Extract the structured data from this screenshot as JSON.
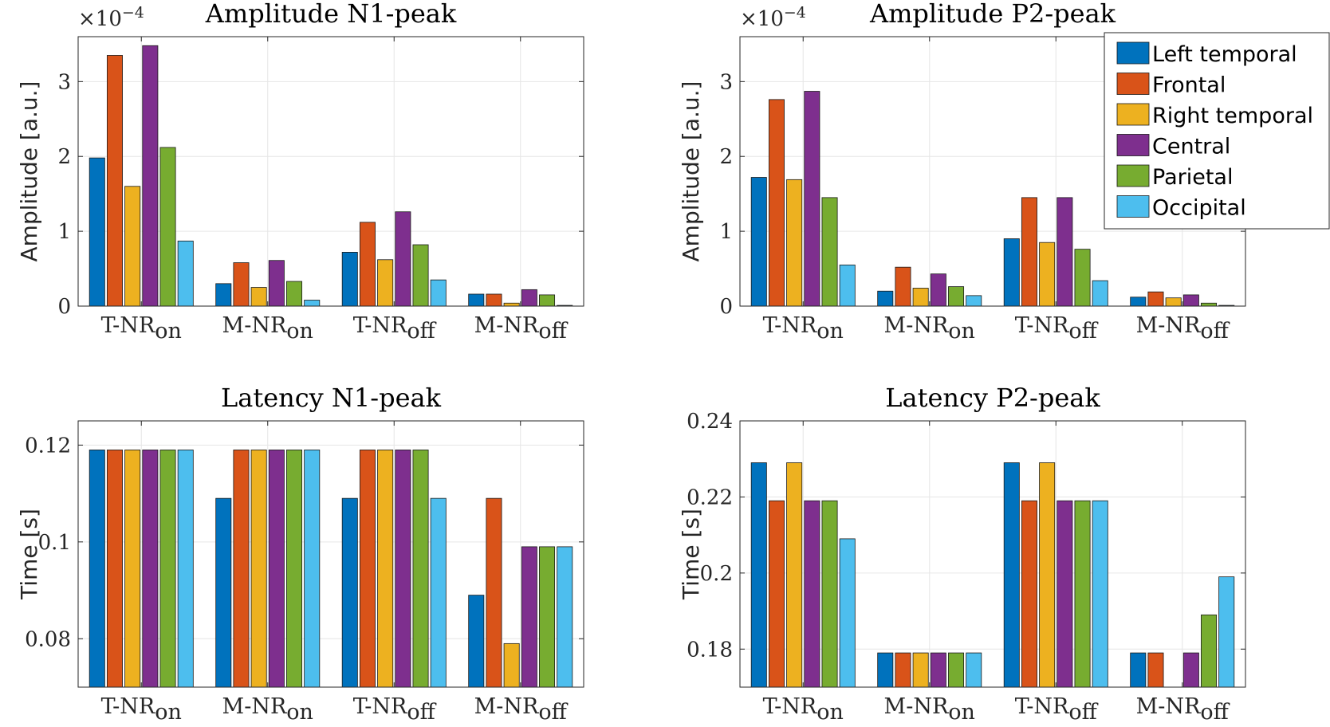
{
  "chart_data": [
    {
      "type": "bar",
      "title": "Amplitude N1-peak",
      "ylabel": "Amplitude [a.u.]",
      "exponent_label": "×10",
      "exponent_power": "−4",
      "ylim": [
        0,
        3.6
      ],
      "yticks": [
        0,
        1,
        2,
        3
      ],
      "ytick_labels": [
        "0",
        "1",
        "2",
        "3"
      ],
      "grid": true,
      "categories": [
        {
          "base": "T-NR",
          "sub": "on"
        },
        {
          "base": "M-NR",
          "sub": "on"
        },
        {
          "base": "T-NR",
          "sub": "off"
        },
        {
          "base": "M-NR",
          "sub": "off"
        }
      ],
      "series": [
        {
          "values": [
            1.98,
            0.3,
            0.72,
            0.16
          ]
        },
        {
          "values": [
            3.35,
            0.58,
            1.12,
            0.16
          ]
        },
        {
          "values": [
            1.6,
            0.25,
            0.62,
            0.04
          ]
        },
        {
          "values": [
            3.48,
            0.61,
            1.26,
            0.22
          ]
        },
        {
          "values": [
            2.12,
            0.33,
            0.82,
            0.15
          ]
        },
        {
          "values": [
            0.87,
            0.08,
            0.35,
            0.01
          ]
        }
      ]
    },
    {
      "type": "bar",
      "title": "Amplitude P2-peak",
      "ylabel": "Amplitude [a.u.]",
      "exponent_label": "×10",
      "exponent_power": "−4",
      "ylim": [
        0,
        3.6
      ],
      "yticks": [
        0,
        1,
        2,
        3
      ],
      "ytick_labels": [
        "0",
        "1",
        "2",
        "3"
      ],
      "grid": true,
      "legend_position": "top-right",
      "categories": [
        {
          "base": "T-NR",
          "sub": "on"
        },
        {
          "base": "M-NR",
          "sub": "on"
        },
        {
          "base": "T-NR",
          "sub": "off"
        },
        {
          "base": "M-NR",
          "sub": "off"
        }
      ],
      "series": [
        {
          "name": "Left temporal",
          "values": [
            1.72,
            0.2,
            0.9,
            0.12
          ]
        },
        {
          "name": "Frontal",
          "values": [
            2.76,
            0.52,
            1.45,
            0.19
          ]
        },
        {
          "name": "Right temporal",
          "values": [
            1.69,
            0.24,
            0.85,
            0.11
          ]
        },
        {
          "name": "Central",
          "values": [
            2.87,
            0.43,
            1.45,
            0.15
          ]
        },
        {
          "name": "Parietal",
          "values": [
            1.45,
            0.26,
            0.76,
            0.04
          ]
        },
        {
          "name": "Occipital",
          "values": [
            0.55,
            0.14,
            0.34,
            0.01
          ]
        }
      ]
    },
    {
      "type": "bar",
      "title": "Latency N1-peak",
      "ylabel": "Time [s]",
      "ylim": [
        0.07,
        0.125
      ],
      "yticks": [
        0.08,
        0.1,
        0.12
      ],
      "ytick_labels": [
        "0.08",
        "0.1",
        "0.12"
      ],
      "grid": true,
      "categories": [
        {
          "base": "T-NR",
          "sub": "on"
        },
        {
          "base": "M-NR",
          "sub": "on"
        },
        {
          "base": "T-NR",
          "sub": "off"
        },
        {
          "base": "M-NR",
          "sub": "off"
        }
      ],
      "series": [
        {
          "values": [
            0.119,
            0.109,
            0.109,
            0.089
          ]
        },
        {
          "values": [
            0.119,
            0.119,
            0.119,
            0.109
          ]
        },
        {
          "values": [
            0.119,
            0.119,
            0.119,
            0.079
          ]
        },
        {
          "values": [
            0.119,
            0.119,
            0.119,
            0.099
          ]
        },
        {
          "values": [
            0.119,
            0.119,
            0.119,
            0.099
          ]
        },
        {
          "values": [
            0.119,
            0.119,
            0.109,
            0.099
          ]
        }
      ]
    },
    {
      "type": "bar",
      "title": "Latency P2-peak",
      "ylabel": "Time [s]",
      "ylim": [
        0.17,
        0.24
      ],
      "yticks": [
        0.18,
        0.2,
        0.22,
        0.24
      ],
      "ytick_labels": [
        "0.18",
        "0.2",
        "0.22",
        "0.24"
      ],
      "grid": true,
      "categories": [
        {
          "base": "T-NR",
          "sub": "on"
        },
        {
          "base": "M-NR",
          "sub": "on"
        },
        {
          "base": "T-NR",
          "sub": "off"
        },
        {
          "base": "M-NR",
          "sub": "off"
        }
      ],
      "series": [
        {
          "values": [
            0.229,
            0.179,
            0.229,
            0.179
          ]
        },
        {
          "values": [
            0.219,
            0.179,
            0.219,
            0.179
          ]
        },
        {
          "values": [
            0.229,
            0.179,
            0.229,
            0.169
          ]
        },
        {
          "values": [
            0.219,
            0.179,
            0.219,
            0.179
          ]
        },
        {
          "values": [
            0.219,
            0.179,
            0.219,
            0.189
          ]
        },
        {
          "values": [
            0.209,
            0.179,
            0.219,
            0.199
          ]
        }
      ]
    }
  ],
  "colors": [
    "#0072BD",
    "#D95319",
    "#EDB120",
    "#7E2F8E",
    "#77AC30",
    "#4DBEEE"
  ]
}
